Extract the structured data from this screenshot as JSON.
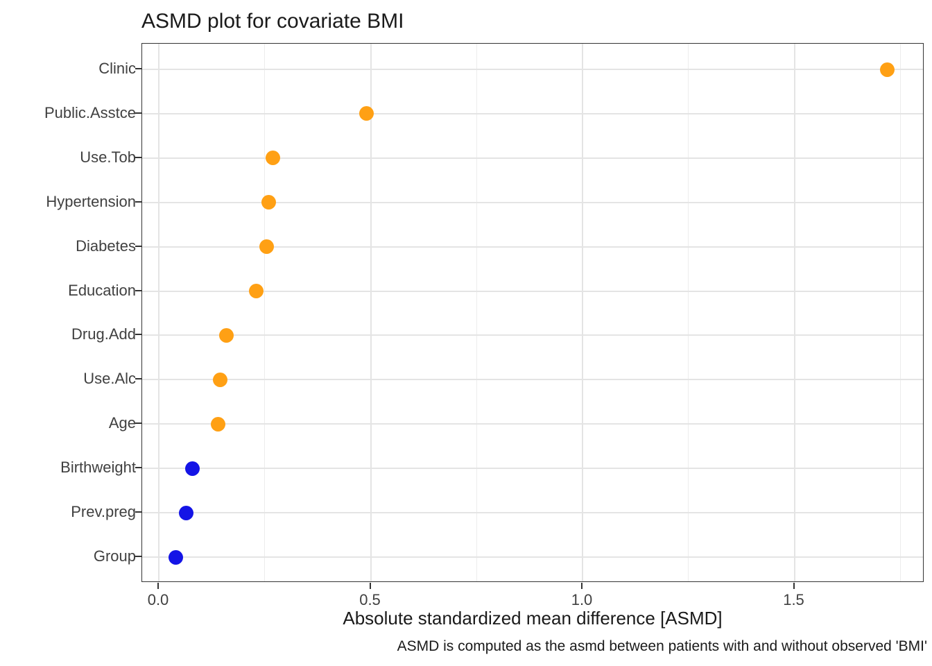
{
  "title": "ASMD plot for covariate BMI",
  "palette": {
    "orange": "#FFA014",
    "blue": "#1414E6",
    "grid_major": "#E4E4E4",
    "grid_minor": "#ECECEC",
    "panel_border": "#333333",
    "axis_text": "#404040",
    "title_text": "#1A1A1A"
  },
  "chart_data": {
    "type": "scatter",
    "subtype": "horizontal-dot-plot",
    "title": "ASMD plot for covariate BMI",
    "xlabel": "Absolute standardized mean difference [ASMD]",
    "ylabel": "",
    "caption": "ASMD is computed as the asmd between patients with and without observed 'BMI'",
    "categories": [
      "Clinic",
      "Public.Asstce",
      "Use.Tob",
      "Hypertension",
      "Diabetes",
      "Education",
      "Drug.Add",
      "Use.Alc",
      "Age",
      "Birthweight",
      "Prev.preg",
      "Group"
    ],
    "values": [
      1.72,
      0.49,
      0.27,
      0.26,
      0.255,
      0.23,
      0.16,
      0.145,
      0.14,
      0.08,
      0.065,
      0.04
    ],
    "point_colors": [
      "orange",
      "orange",
      "orange",
      "orange",
      "orange",
      "orange",
      "orange",
      "orange",
      "orange",
      "blue",
      "blue",
      "blue"
    ],
    "x_ticks": [
      0.0,
      0.5,
      1.0,
      1.5
    ],
    "x_tick_labels": [
      "0.0",
      "0.5",
      "1.0",
      "1.5"
    ],
    "x_minor_ticks": [
      0.25,
      0.75,
      1.25,
      1.75
    ],
    "xlim": [
      -0.04,
      1.81
    ],
    "grid": true,
    "legend": "none"
  }
}
